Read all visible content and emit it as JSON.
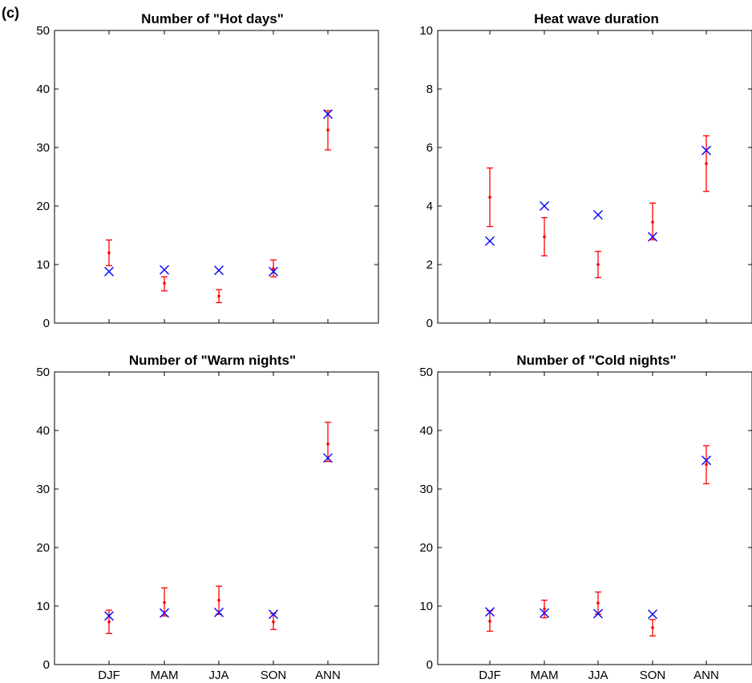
{
  "panel_label": "(c)",
  "colors": {
    "observed": "#0000ff",
    "model_range": "#ff0000",
    "axes": "#000000"
  },
  "chart_data": [
    {
      "type": "scatter",
      "title": "Number of \"Hot days\"",
      "categories": [
        "DJF",
        "MAM",
        "JJA",
        "SON",
        "ANN"
      ],
      "show_xticklabels": false,
      "ylim": [
        0,
        50
      ],
      "yticks": [
        0,
        10,
        20,
        30,
        40,
        50
      ],
      "grid": false,
      "observed": [
        8.8,
        9.1,
        9.0,
        8.8,
        35.7
      ],
      "model_range": [
        {
          "low": 9.8,
          "mid": 12.0,
          "high": 14.2
        },
        {
          "low": 5.5,
          "mid": 6.8,
          "high": 7.9
        },
        {
          "low": 3.5,
          "mid": 4.6,
          "high": 5.7
        },
        {
          "low": 7.9,
          "mid": 9.3,
          "high": 10.8
        },
        {
          "low": 29.6,
          "mid": 33.0,
          "high": 36.3
        }
      ]
    },
    {
      "type": "scatter",
      "title": "Heat wave duration",
      "categories": [
        "DJF",
        "MAM",
        "JJA",
        "SON",
        "ANN"
      ],
      "show_xticklabels": false,
      "ylim": [
        0,
        10
      ],
      "yticks": [
        0,
        2,
        4,
        6,
        8,
        10
      ],
      "grid": false,
      "observed": [
        2.8,
        4.0,
        3.7,
        2.95,
        5.9
      ],
      "model_range": [
        {
          "low": 3.3,
          "mid": 4.3,
          "high": 5.3
        },
        {
          "low": 2.3,
          "mid": 2.95,
          "high": 3.6
        },
        {
          "low": 1.55,
          "mid": 2.0,
          "high": 2.45
        },
        {
          "low": 2.85,
          "mid": 3.45,
          "high": 4.1
        },
        {
          "low": 4.5,
          "mid": 5.45,
          "high": 6.4
        }
      ]
    },
    {
      "type": "scatter",
      "title": "Number of \"Warm nights\"",
      "categories": [
        "DJF",
        "MAM",
        "JJA",
        "SON",
        "ANN"
      ],
      "show_xticklabels": true,
      "ylim": [
        0,
        50
      ],
      "yticks": [
        0,
        10,
        20,
        30,
        40,
        50
      ],
      "grid": false,
      "observed": [
        8.3,
        8.8,
        8.9,
        8.6,
        35.3
      ],
      "model_range": [
        {
          "low": 5.3,
          "mid": 7.3,
          "high": 9.3
        },
        {
          "low": 8.3,
          "mid": 10.6,
          "high": 13.1
        },
        {
          "low": 8.6,
          "mid": 11.0,
          "high": 13.4
        },
        {
          "low": 6.0,
          "mid": 7.3,
          "high": 8.7
        },
        {
          "low": 34.7,
          "mid": 37.7,
          "high": 41.4
        }
      ]
    },
    {
      "type": "scatter",
      "title": "Number of \"Cold nights\"",
      "categories": [
        "DJF",
        "MAM",
        "JJA",
        "SON",
        "ANN"
      ],
      "show_xticklabels": true,
      "ylim": [
        0,
        50
      ],
      "yticks": [
        0,
        10,
        20,
        30,
        40,
        50
      ],
      "grid": false,
      "observed": [
        9.0,
        8.8,
        8.7,
        8.6,
        34.9
      ],
      "model_range": [
        {
          "low": 5.7,
          "mid": 7.4,
          "high": 9.2
        },
        {
          "low": 8.0,
          "mid": 9.5,
          "high": 11.0
        },
        {
          "low": 8.6,
          "mid": 10.5,
          "high": 12.4
        },
        {
          "low": 4.9,
          "mid": 6.3,
          "high": 7.7
        },
        {
          "low": 30.9,
          "mid": 34.2,
          "high": 37.4
        }
      ]
    }
  ]
}
